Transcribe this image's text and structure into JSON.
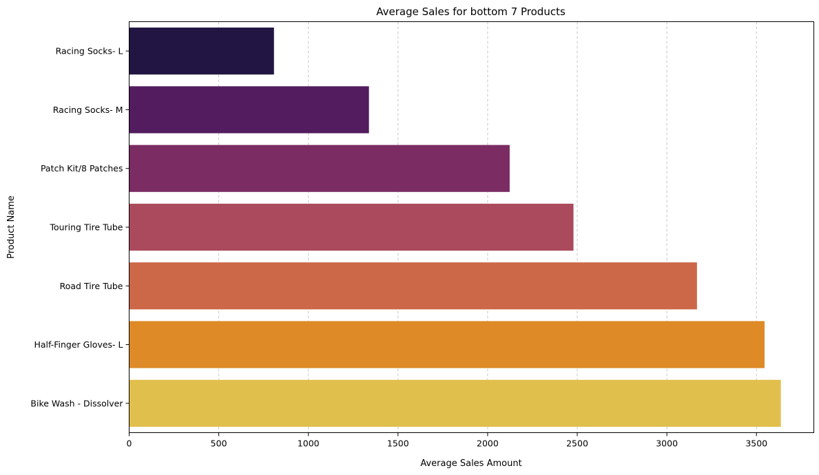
{
  "chart_data": {
    "type": "bar",
    "orientation": "horizontal",
    "title": "Average Sales for bottom 7 Products",
    "xlabel": "Average Sales Amount",
    "ylabel": "Product Name",
    "categories": [
      "Racing Socks- L",
      "Racing Socks- M",
      "Patch Kit/8 Patches",
      "Touring Tire Tube",
      "Road Tire Tube",
      "Half-Finger Gloves- L",
      "Bike Wash - Dissolver"
    ],
    "values": [
      808,
      1338,
      2123,
      2479,
      3168,
      3545,
      3636
    ],
    "colors": [
      "#221543",
      "#531c5e",
      "#7b2c63",
      "#ab4a5d",
      "#cc6748",
      "#dd8a27",
      "#e1bf4c"
    ],
    "xlim": [
      0,
      3820
    ],
    "xticks": [
      0,
      500,
      1000,
      1500,
      2000,
      2500,
      3000,
      3500
    ],
    "grid": "x-dashed"
  }
}
